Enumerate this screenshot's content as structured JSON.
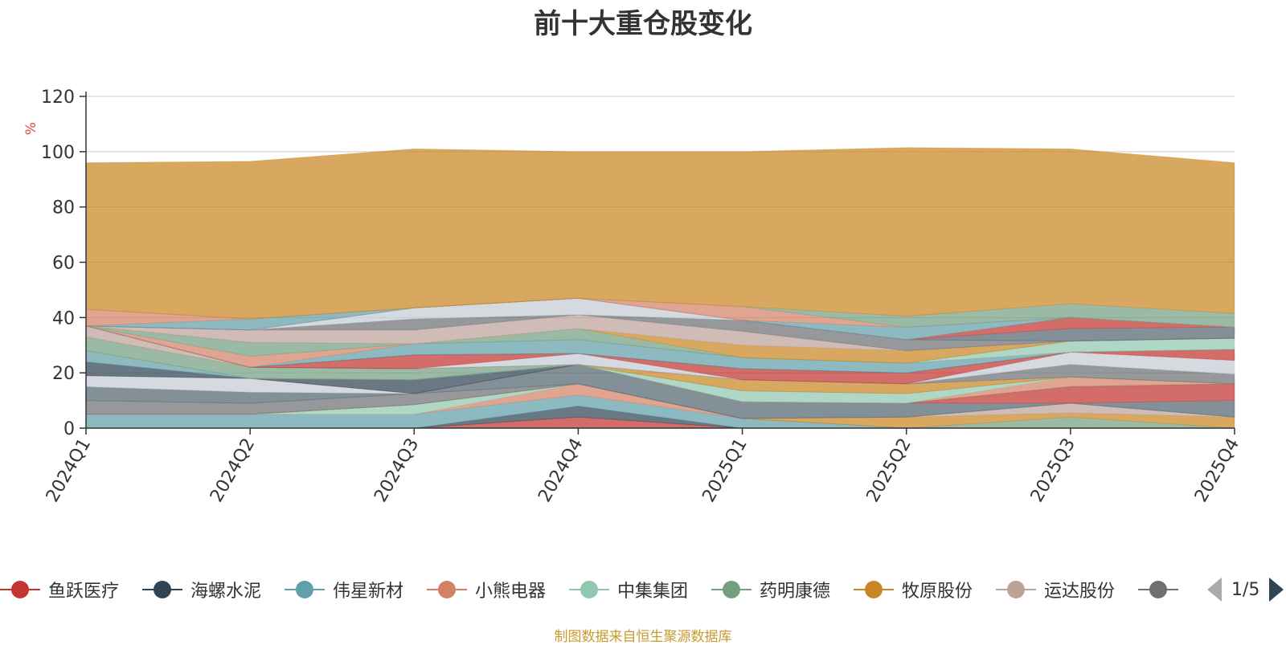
{
  "chart_data": {
    "type": "area",
    "stacked": true,
    "title": "前十大重仓股变化",
    "ylabel": "%",
    "ylim": [
      0,
      120
    ],
    "yticks": [
      0,
      20,
      40,
      60,
      80,
      100,
      120
    ],
    "categories": [
      "2024Q1",
      "2024Q2",
      "2024Q3",
      "2024Q4",
      "2025Q1",
      "2025Q2",
      "2025Q3",
      "2025Q4"
    ],
    "series": [
      {
        "name": "鱼跃医疗",
        "color": "#c23531",
        "values": [
          0,
          0,
          0,
          4,
          0,
          0,
          0,
          0
        ]
      },
      {
        "name": "海螺水泥",
        "color": "#2f4554",
        "values": [
          0,
          0,
          0,
          4,
          0,
          0,
          0,
          0
        ]
      },
      {
        "name": "伟星新材",
        "color": "#61a0a8",
        "values": [
          5,
          5,
          5,
          4,
          3.5,
          0,
          0,
          0
        ]
      },
      {
        "name": "小熊电器",
        "color": "#d48265",
        "values": [
          0,
          0,
          0,
          4,
          0,
          0,
          0,
          0
        ]
      },
      {
        "name": "中集集团",
        "color": "#91c7ae",
        "values": [
          0,
          0,
          3.5,
          0,
          0,
          0,
          0,
          0
        ]
      },
      {
        "name": "药明康德",
        "color": "#749f83",
        "values": [
          0,
          0,
          0,
          0,
          0,
          0,
          4,
          0
        ]
      },
      {
        "name": "牧原股份",
        "color": "#ca8622",
        "values": [
          0,
          0,
          0,
          0,
          0,
          4,
          1.5,
          4
        ]
      },
      {
        "name": "运达股份",
        "color": "#bda29a",
        "values": [
          0,
          0,
          0,
          0,
          0,
          0,
          3.5,
          0
        ]
      },
      {
        "name": "",
        "color": "#6e7074",
        "values": [
          5,
          4,
          4,
          0,
          0,
          0,
          0,
          0
        ]
      },
      {
        "name": "",
        "color": "#546570",
        "values": [
          5,
          4,
          0,
          7,
          6,
          5,
          0,
          6
        ]
      },
      {
        "name": "",
        "color": "#c4ccd3",
        "values": [
          4,
          5,
          0,
          0,
          0,
          0,
          0,
          0
        ]
      },
      {
        "name": "",
        "color": "#c23531",
        "values": [
          0,
          0,
          0,
          0,
          0,
          0,
          6,
          6
        ]
      },
      {
        "name": "",
        "color": "#2f4554",
        "values": [
          5,
          0,
          5,
          0,
          0,
          0,
          0,
          0
        ]
      },
      {
        "name": "",
        "color": "#61a0a8",
        "values": [
          4,
          0,
          0,
          0,
          0,
          0,
          0,
          0
        ]
      },
      {
        "name": "",
        "color": "#d48265",
        "values": [
          0,
          0,
          0,
          0,
          0,
          0,
          3.5,
          0
        ]
      },
      {
        "name": "",
        "color": "#91c7ae",
        "values": [
          0,
          0,
          0,
          0,
          4,
          3.5,
          0,
          0
        ]
      },
      {
        "name": "",
        "color": "#749f83",
        "values": [
          5,
          4,
          4,
          0,
          0,
          0,
          0,
          0
        ]
      },
      {
        "name": "",
        "color": "#ca8622",
        "values": [
          0,
          0,
          0,
          0,
          4,
          3.5,
          0,
          0
        ]
      },
      {
        "name": "",
        "color": "#bda29a",
        "values": [
          4,
          0,
          0,
          0,
          0,
          0,
          0,
          0
        ]
      },
      {
        "name": "",
        "color": "#6e7074",
        "values": [
          0,
          0,
          0,
          0,
          0,
          0,
          4.5,
          3.5
        ]
      },
      {
        "name": "",
        "color": "#546570",
        "values": [
          0,
          0,
          0,
          0,
          0,
          0,
          0,
          0
        ]
      },
      {
        "name": "",
        "color": "#c4ccd3",
        "values": [
          0,
          0,
          0,
          4,
          0,
          0,
          4.5,
          5
        ]
      },
      {
        "name": "",
        "color": "#c23531",
        "values": [
          0,
          0,
          5,
          0,
          4,
          4,
          0,
          4
        ]
      },
      {
        "name": "",
        "color": "#2f4554",
        "values": [
          0,
          0,
          0,
          0,
          0,
          0,
          0,
          0
        ]
      },
      {
        "name": "",
        "color": "#61a0a8",
        "values": [
          0,
          0,
          4,
          5,
          4,
          3.5,
          0,
          0
        ]
      },
      {
        "name": "",
        "color": "#d48265",
        "values": [
          0,
          4,
          0,
          0,
          0,
          0,
          0,
          0
        ]
      },
      {
        "name": "",
        "color": "#91c7ae",
        "values": [
          0,
          0,
          0,
          0,
          0,
          0,
          4,
          4
        ]
      },
      {
        "name": "",
        "color": "#749f83",
        "values": [
          0,
          5,
          0,
          4,
          0,
          0,
          0,
          0
        ]
      },
      {
        "name": "",
        "color": "#ca8622",
        "values": [
          0,
          0,
          0,
          0,
          4.5,
          4.5,
          0,
          0
        ]
      },
      {
        "name": "",
        "color": "#bda29a",
        "values": [
          0,
          4.5,
          5,
          5,
          5,
          0,
          0,
          0
        ]
      },
      {
        "name": "",
        "color": "#6e7074",
        "values": [
          0,
          0,
          4,
          0,
          4,
          4,
          0,
          0
        ]
      },
      {
        "name": "",
        "color": "#546570",
        "values": [
          0,
          0,
          0,
          0,
          0,
          0,
          4.5,
          4
        ]
      },
      {
        "name": "",
        "color": "#c4ccd3",
        "values": [
          0,
          0,
          4,
          6,
          0,
          0,
          0,
          0
        ]
      },
      {
        "name": "",
        "color": "#c23531",
        "values": [
          0,
          0,
          0,
          0,
          0,
          0,
          4,
          0
        ]
      },
      {
        "name": "",
        "color": "#61a0a8",
        "values": [
          0,
          4,
          0,
          0,
          0,
          4.5,
          0,
          0
        ]
      },
      {
        "name": "",
        "color": "#d48265",
        "values": [
          6,
          0,
          0,
          0,
          5,
          0,
          0,
          0
        ]
      },
      {
        "name": "",
        "color": "#749f83",
        "values": [
          0,
          0,
          0,
          0,
          0,
          4,
          5,
          5
        ]
      },
      {
        "name": "",
        "color": "#ca8622",
        "values": [
          53,
          57,
          57.5,
          53,
          56,
          61,
          56,
          54.5
        ]
      }
    ],
    "legend": {
      "position": "bottom",
      "page": "1/5",
      "visible": [
        {
          "name": "鱼跃医疗",
          "color": "#c23531"
        },
        {
          "name": "海螺水泥",
          "color": "#2f4554"
        },
        {
          "name": "伟星新材",
          "color": "#61a0a8"
        },
        {
          "name": "小熊电器",
          "color": "#d48265"
        },
        {
          "name": "中集集团",
          "color": "#91c7ae"
        },
        {
          "name": "药明康德",
          "color": "#749f83"
        },
        {
          "name": "牧原股份",
          "color": "#ca8622"
        },
        {
          "name": "运达股份",
          "color": "#bda29a"
        },
        {
          "name": "",
          "color": "#6e7074"
        }
      ]
    },
    "grid": true,
    "source_note": "制图数据来自恒生聚源数据库"
  }
}
